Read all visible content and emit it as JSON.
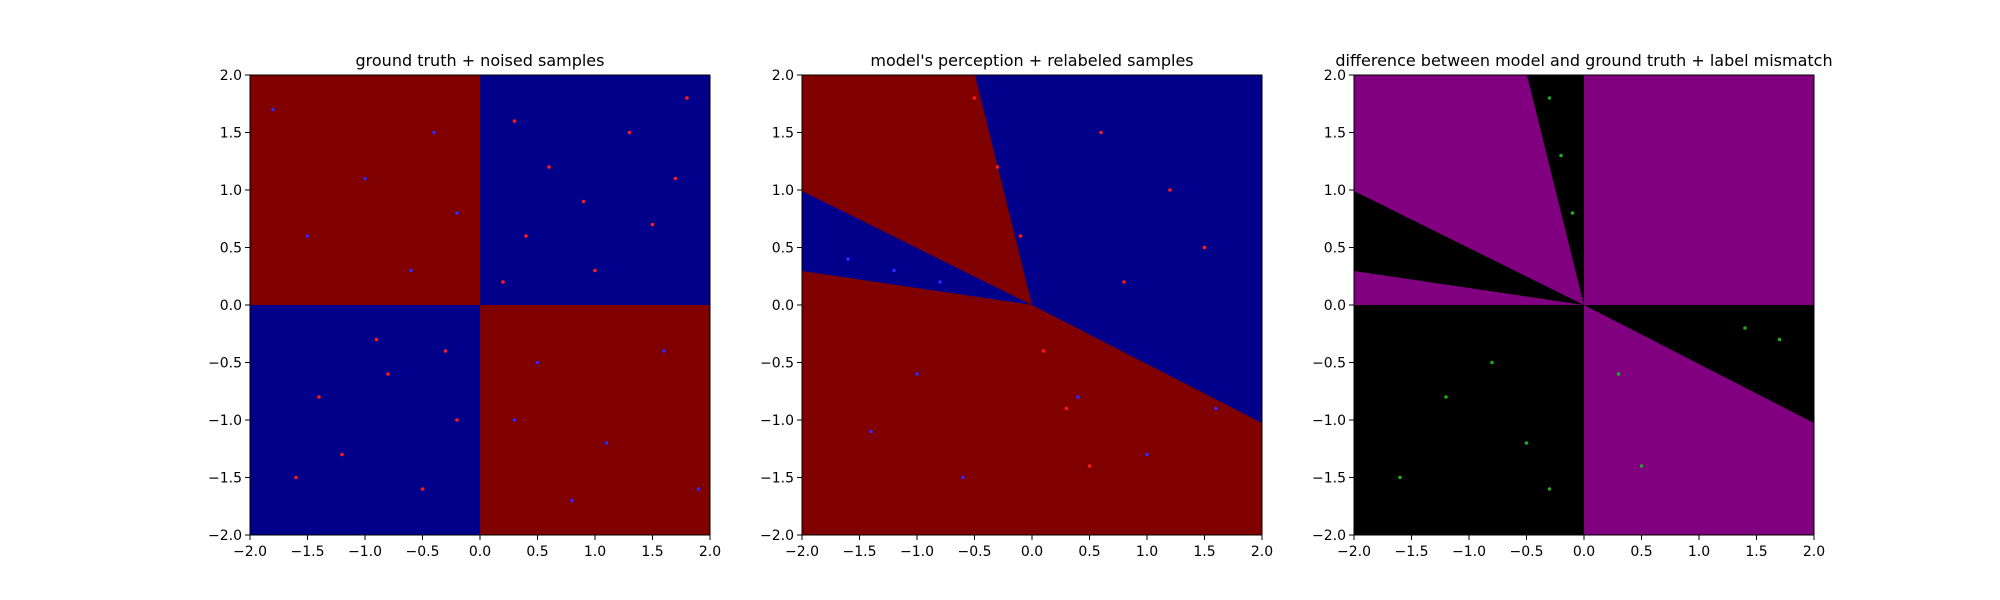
{
  "colors": {
    "red_region": "#800000",
    "blue_region": "#00008b",
    "purple_region": "#800080",
    "black_region": "#000000",
    "red_point": "#ff1a1a",
    "blue_point": "#2a2aff",
    "green_point": "#1faa1f"
  },
  "chart_data": [
    {
      "type": "scatter",
      "title": "ground truth + noised samples",
      "xlim": [
        -2.0,
        2.0
      ],
      "ylim": [
        -2.0,
        2.0
      ],
      "xticks": [
        "-2.0",
        "-1.5",
        "-1.0",
        "-0.5",
        "0.0",
        "0.5",
        "1.0",
        "1.5",
        "2.0"
      ],
      "yticks": [
        "2.0",
        "1.5",
        "1.0",
        "0.5",
        "0.0",
        "-0.5",
        "-1.0",
        "-1.5",
        "-2.0"
      ],
      "background": "quadrant XOR decision regions: red where x*y<0, blue where x*y>0",
      "series": [
        {
          "name": "",
          "color": "red",
          "points": [
            [
              0.3,
              1.6
            ],
            [
              0.6,
              1.2
            ],
            [
              0.9,
              0.9
            ],
            [
              1.3,
              1.5
            ],
            [
              1.7,
              1.1
            ],
            [
              0.4,
              0.6
            ],
            [
              1.0,
              0.3
            ],
            [
              1.5,
              0.7
            ],
            [
              0.2,
              0.2
            ],
            [
              1.8,
              1.8
            ],
            [
              -0.3,
              -0.4
            ],
            [
              -0.8,
              -0.6
            ],
            [
              -1.2,
              -1.3
            ],
            [
              -0.5,
              -1.6
            ],
            [
              -1.6,
              -1.5
            ],
            [
              -0.9,
              -0.3
            ],
            [
              -0.2,
              -1.0
            ],
            [
              -1.4,
              -0.8
            ]
          ]
        },
        {
          "name": "",
          "color": "blue",
          "points": [
            [
              -0.4,
              1.5
            ],
            [
              -1.0,
              1.1
            ],
            [
              -1.5,
              0.6
            ],
            [
              -0.6,
              0.3
            ],
            [
              -1.8,
              1.7
            ],
            [
              -0.2,
              0.8
            ],
            [
              0.5,
              -0.5
            ],
            [
              1.1,
              -1.2
            ],
            [
              1.6,
              -0.4
            ],
            [
              0.8,
              -1.7
            ],
            [
              0.3,
              -1.0
            ],
            [
              1.9,
              -1.6
            ]
          ]
        }
      ]
    },
    {
      "type": "scatter",
      "title": "model's perception + relabeled samples",
      "xlim": [
        -2.0,
        2.0
      ],
      "ylim": [
        -2.0,
        2.0
      ],
      "xticks": [
        "-2.0",
        "-1.5",
        "-1.0",
        "-0.5",
        "0.0",
        "0.5",
        "1.0",
        "1.5",
        "2.0"
      ],
      "yticks": [
        "2.0",
        "1.5",
        "1.0",
        "0.5",
        "0.0",
        "-0.5",
        "-1.0",
        "-1.5",
        "-2.0"
      ],
      "background": "wedge-shaped decision regions meeting at origin: red (upper-left, lower), blue (upper-right, left wedge)",
      "series": [
        {
          "name": "",
          "color": "red",
          "points": [
            [
              -0.5,
              1.8
            ],
            [
              -0.3,
              1.2
            ],
            [
              -0.1,
              0.6
            ],
            [
              0.1,
              -0.4
            ],
            [
              0.3,
              -0.9
            ],
            [
              0.5,
              -1.4
            ],
            [
              0.6,
              1.5
            ],
            [
              1.2,
              1.0
            ],
            [
              1.5,
              0.5
            ],
            [
              0.8,
              0.2
            ]
          ]
        },
        {
          "name": "",
          "color": "blue",
          "points": [
            [
              -1.6,
              0.4
            ],
            [
              -1.2,
              0.3
            ],
            [
              -0.8,
              0.2
            ],
            [
              -1.0,
              -0.6
            ],
            [
              -1.4,
              -1.1
            ],
            [
              -0.6,
              -1.5
            ],
            [
              0.4,
              -0.8
            ],
            [
              1.0,
              -1.3
            ],
            [
              1.6,
              -0.9
            ]
          ]
        }
      ]
    },
    {
      "type": "scatter",
      "title": "difference between model and ground truth + label mismatch",
      "xlim": [
        -2.0,
        2.0
      ],
      "ylim": [
        -2.0,
        2.0
      ],
      "xticks": [
        "-2.0",
        "-1.5",
        "-1.0",
        "-0.5",
        "0.0",
        "0.5",
        "1.0",
        "1.5",
        "2.0"
      ],
      "yticks": [
        "2.0",
        "1.5",
        "1.0",
        "0.5",
        "0.0",
        "-0.5",
        "-1.0",
        "-1.5",
        "-2.0"
      ],
      "background": "purple where model agrees with ground truth, black where it differs",
      "series": [
        {
          "name": "",
          "color": "green",
          "points": [
            [
              -0.3,
              1.8
            ],
            [
              -0.2,
              1.3
            ],
            [
              -0.1,
              0.8
            ],
            [
              -1.6,
              -1.5
            ],
            [
              -1.2,
              -0.8
            ],
            [
              -0.8,
              -0.5
            ],
            [
              -0.5,
              -1.2
            ],
            [
              -0.3,
              -1.6
            ],
            [
              0.3,
              -0.6
            ],
            [
              0.5,
              -1.4
            ],
            [
              1.4,
              -0.2
            ],
            [
              1.7,
              -0.3
            ]
          ]
        }
      ]
    }
  ]
}
